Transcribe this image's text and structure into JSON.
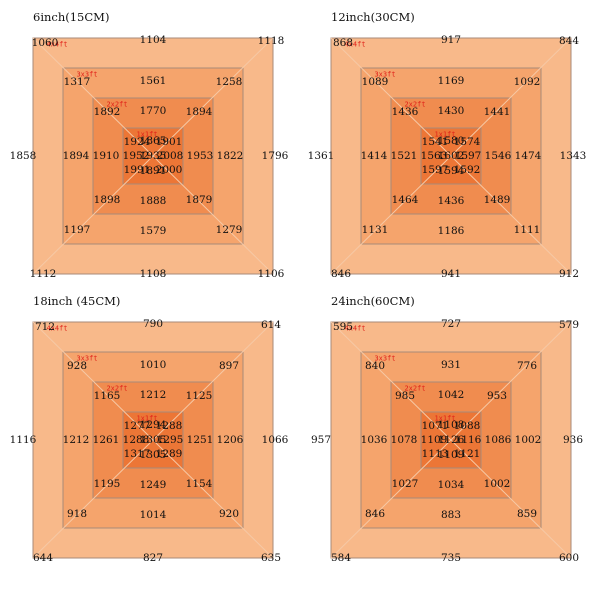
{
  "panels": [
    {
      "title": "6inch(15CM)",
      "levels": [
        "4x4ft",
        "3x3ft",
        "2x2ft",
        "1x1ft"
      ],
      "rings": [
        {
          "corners": [
            "1060",
            "1118",
            "1106",
            "1112"
          ],
          "edges": [
            "1104",
            "1796",
            "1108",
            "1858"
          ]
        },
        {
          "corners": [
            "1317",
            "1258",
            "1279",
            "1197"
          ],
          "edges": [
            "1561",
            "1822",
            "1579",
            "1894"
          ]
        },
        {
          "corners": [
            "1892",
            "1894",
            "1879",
            "1898"
          ],
          "edges": [
            "1770",
            "1953",
            "1888",
            "1910"
          ]
        },
        {
          "corners": [
            "1924",
            "1901",
            "2000",
            "1991"
          ],
          "edges": [
            "1865",
            "2008",
            "1891",
            "1952"
          ]
        }
      ],
      "center": "1935"
    },
    {
      "title": "12inch(30CM)",
      "levels": [
        "4x4ft",
        "3x3ft",
        "2x2ft",
        "1x1ft"
      ],
      "rings": [
        {
          "corners": [
            "868",
            "844",
            "912",
            "846"
          ],
          "edges": [
            "917",
            "1343",
            "941",
            "1361"
          ]
        },
        {
          "corners": [
            "1089",
            "1092",
            "1111",
            "1131"
          ],
          "edges": [
            "1169",
            "1474",
            "1186",
            "1414"
          ]
        },
        {
          "corners": [
            "1436",
            "1441",
            "1489",
            "1464"
          ],
          "edges": [
            "1430",
            "1546",
            "1436",
            "1521"
          ]
        },
        {
          "corners": [
            "1541",
            "1574",
            "1592",
            "1597"
          ],
          "edges": [
            "1580",
            "1597",
            "1594",
            "1563"
          ]
        }
      ],
      "center": "1602"
    },
    {
      "title": "18inch (45CM)",
      "levels": [
        "4x4ft",
        "3x3ft",
        "2x2ft",
        "1x1ft"
      ],
      "rings": [
        {
          "corners": [
            "712",
            "614",
            "635",
            "644"
          ],
          "edges": [
            "790",
            "1066",
            "827",
            "1116"
          ]
        },
        {
          "corners": [
            "928",
            "897",
            "920",
            "918"
          ],
          "edges": [
            "1010",
            "1206",
            "1014",
            "1212"
          ]
        },
        {
          "corners": [
            "1165",
            "1125",
            "1154",
            "1195"
          ],
          "edges": [
            "1212",
            "1251",
            "1249",
            "1261"
          ]
        },
        {
          "corners": [
            "1277",
            "1288",
            "1289",
            "1317"
          ],
          "edges": [
            "1294",
            "1295",
            "1305",
            "1288"
          ]
        }
      ],
      "center": "1305"
    },
    {
      "title": "24inch(60CM)",
      "levels": [
        "4x4ft",
        "3x3ft",
        "2x2ft",
        "1x1ft"
      ],
      "rings": [
        {
          "corners": [
            "595",
            "579",
            "600",
            "584"
          ],
          "edges": [
            "727",
            "936",
            "735",
            "957"
          ]
        },
        {
          "corners": [
            "840",
            "776",
            "859",
            "846"
          ],
          "edges": [
            "931",
            "1002",
            "883",
            "1036"
          ]
        },
        {
          "corners": [
            "985",
            "953",
            "1002",
            "1027"
          ],
          "edges": [
            "1042",
            "1086",
            "1034",
            "1078"
          ]
        },
        {
          "corners": [
            "1071",
            "1088",
            "1121",
            "1113"
          ],
          "edges": [
            "1108",
            "1116",
            "1109",
            "1109"
          ]
        }
      ],
      "center": "1126"
    }
  ],
  "colors": {
    "ring1": "#f8b98a",
    "ring2": "#f5a46c",
    "ring3": "#f08c4f",
    "ring4": "#ec7636",
    "border": "#a88a78",
    "level_label": "#e02018"
  }
}
